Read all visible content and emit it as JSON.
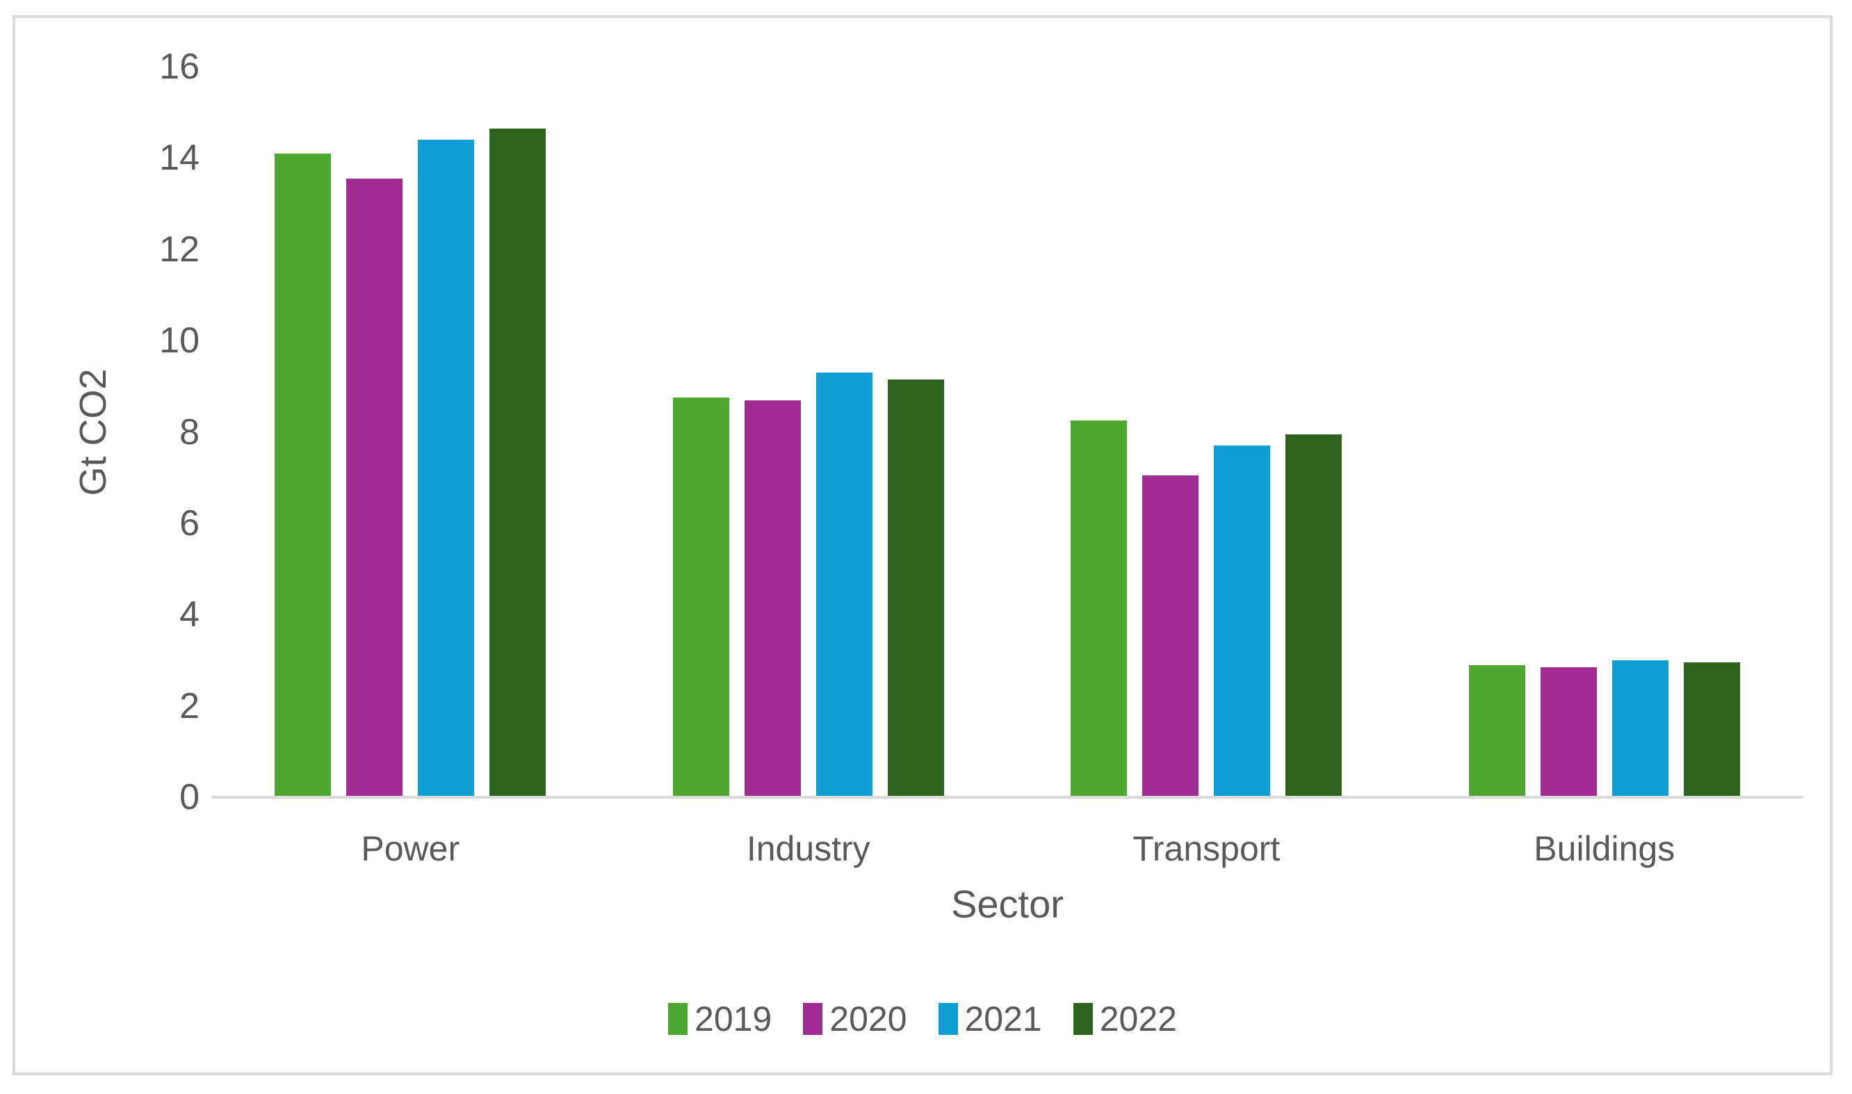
{
  "chart_data": {
    "type": "bar",
    "title": "",
    "categories": [
      "Power",
      "Industry",
      "Transport",
      "Buildings"
    ],
    "series": [
      {
        "name": "2019",
        "color": "#4EA72E",
        "values": [
          14.1,
          8.75,
          8.25,
          2.9
        ]
      },
      {
        "name": "2020",
        "color": "#A02B93",
        "values": [
          13.55,
          8.7,
          7.05,
          2.85
        ]
      },
      {
        "name": "2021",
        "color": "#0F9ED5",
        "values": [
          14.4,
          9.3,
          7.7,
          3.0
        ]
      },
      {
        "name": "2022",
        "color": "#2F641E",
        "values": [
          14.65,
          9.15,
          7.95,
          2.95
        ]
      }
    ],
    "xlabel": "Sector",
    "ylabel": "Gt CO2",
    "ylim": [
      0,
      16
    ],
    "yticks": [
      0,
      2,
      4,
      6,
      8,
      10,
      12,
      14,
      16
    ],
    "grid": false,
    "legend_position": "bottom",
    "legend_labels": [
      "2019",
      "2020",
      "2021",
      "2022"
    ]
  },
  "colors": {
    "series_2019": "#4EA72E",
    "series_2020": "#A02B93",
    "series_2021": "#0F9ED5",
    "series_2022": "#2F641E",
    "axis_line": "#D9D9D9",
    "chart_border": "#D9D9D9",
    "text": "#595959",
    "background": "#FFFFFF"
  }
}
